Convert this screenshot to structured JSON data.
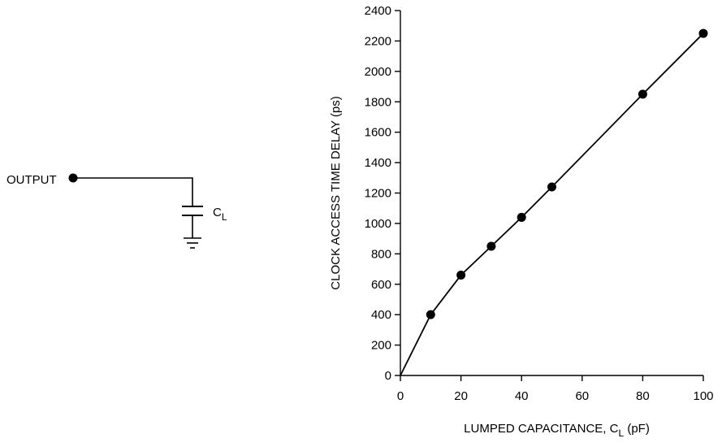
{
  "circuit": {
    "output_label": "OUTPUT",
    "cap_label_main": "C",
    "cap_label_sub": "L"
  },
  "chart_data": {
    "type": "line",
    "title": "",
    "xlabel": "LUMPED CAPACITANCE, C_L (pF)",
    "xlabel_main": "LUMPED CAPACITANCE, C",
    "xlabel_sub": "L",
    "xlabel_tail": " (pF)",
    "ylabel": "CLOCK ACCESS TIME DELAY (ps)",
    "xlim": [
      0,
      100
    ],
    "ylim": [
      0,
      2400
    ],
    "x_ticks": [
      0,
      20,
      40,
      60,
      80,
      100
    ],
    "y_ticks": [
      0,
      200,
      400,
      600,
      800,
      1000,
      1200,
      1400,
      1600,
      1800,
      2000,
      2200,
      2400
    ],
    "grid": false,
    "series": [
      {
        "x": [
          0,
          10,
          20,
          30,
          40,
          50,
          80,
          100
        ],
        "y": [
          0,
          400,
          660,
          850,
          1040,
          1240,
          1850,
          2250
        ],
        "markers": [
          false,
          true,
          true,
          true,
          true,
          true,
          true,
          true
        ]
      }
    ]
  }
}
